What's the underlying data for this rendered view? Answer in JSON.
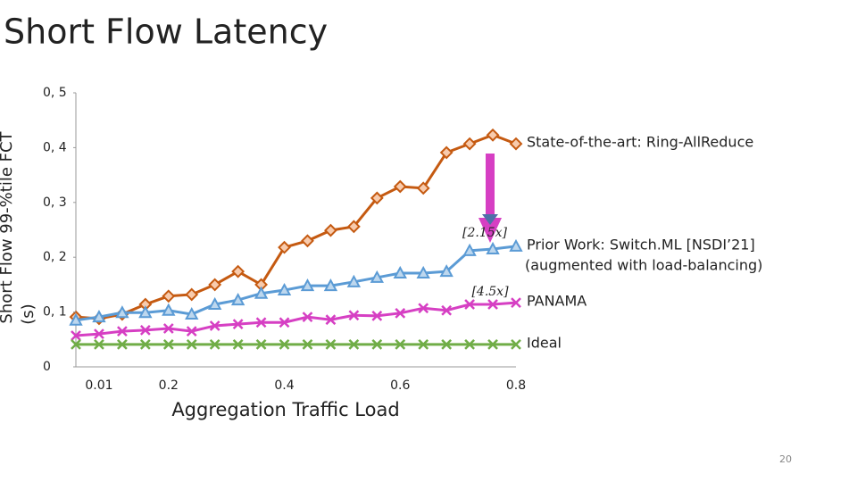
{
  "slide_number": "20",
  "chart_data": {
    "type": "line",
    "title": "Short Flow Latency",
    "x_label": "Aggregation Traffic Load",
    "y_label": [
      "Short Flow 99-%tile FCT",
      "(s)"
    ],
    "categories": [
      null,
      "0.01",
      null,
      null,
      "0.2",
      null,
      null,
      null,
      null,
      "0.4",
      null,
      null,
      null,
      null,
      "0.6",
      null,
      null,
      null,
      null,
      "0.8"
    ],
    "ylim": [
      0,
      0.5
    ],
    "yticks": [
      0,
      {
        "value": 0.1,
        "label": "0, 1"
      },
      {
        "value": 0.2,
        "label": "0, 2"
      },
      {
        "value": 0.3,
        "label": "0, 3"
      },
      {
        "value": 0.4,
        "label": "0, 4"
      },
      {
        "value": 0.5,
        "label": "0, 5"
      }
    ],
    "grid": false,
    "series": [
      {
        "name": "State-of-the-art: Ring-AllReduce",
        "color": "#c55a11",
        "marker": "diamond",
        "values": [
          0.091,
          0.088,
          0.096,
          0.114,
          0.129,
          0.132,
          0.15,
          0.174,
          0.15,
          0.218,
          0.23,
          0.249,
          0.256,
          0.308,
          0.329,
          0.326,
          0.391,
          0.407,
          0.423,
          0.407
        ]
      },
      {
        "name": "Prior Work: Switch.ML [NSDI’21]",
        "color": "#5b9bd5",
        "marker": "triangle",
        "values": [
          0.085,
          0.091,
          0.099,
          0.099,
          0.103,
          0.096,
          0.114,
          0.122,
          0.134,
          0.14,
          0.148,
          0.148,
          0.155,
          0.163,
          0.171,
          0.171,
          0.174,
          0.212,
          0.215,
          0.22
        ]
      },
      {
        "name": "PANAMA",
        "color": "#d63fc3",
        "marker": "x",
        "values": [
          0.057,
          0.06,
          0.065,
          0.067,
          0.07,
          0.065,
          0.075,
          0.078,
          0.081,
          0.081,
          0.091,
          0.086,
          0.094,
          0.093,
          0.098,
          0.107,
          0.103,
          0.114,
          0.114,
          0.117
        ]
      },
      {
        "name": "Ideal",
        "color": "#70ad47",
        "marker": "x",
        "values": [
          0.041,
          0.041,
          0.041,
          0.041,
          0.041,
          0.041,
          0.041,
          0.041,
          0.041,
          0.041,
          0.041,
          0.041,
          0.041,
          0.041,
          0.041,
          0.041,
          0.041,
          0.041,
          0.041,
          0.041
        ]
      }
    ],
    "annotations": [
      "(augmented with load-balancing)",
      "[2.15x]",
      "[4.5x]"
    ]
  }
}
